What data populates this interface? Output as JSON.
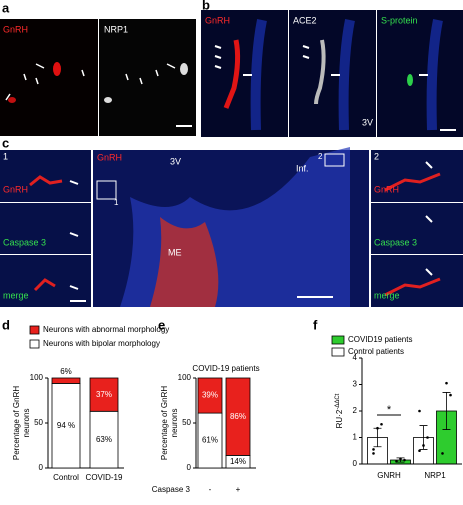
{
  "panels": {
    "a": {
      "letter": "a",
      "labels": [
        "GnRH",
        "NRP1"
      ]
    },
    "b": {
      "letter": "b",
      "labels": [
        "GnRH",
        "ACE2",
        "S-protein"
      ],
      "region": "3V"
    },
    "c": {
      "letter": "c",
      "left": {
        "inset": "1",
        "labels": [
          "GnRH",
          "Caspase 3",
          "merge"
        ]
      },
      "center": {
        "labels": [
          "GnRH",
          "3V",
          "Inf.",
          "ME"
        ],
        "box_labels": [
          "1",
          "2"
        ]
      },
      "right": {
        "inset": "2",
        "labels": [
          "GnRH",
          "Caspase 3",
          "merge"
        ]
      }
    }
  },
  "chart_data": [
    {
      "type": "stacked_bar",
      "letter": "d",
      "ylabel": [
        "Percentage of GnRH",
        "neurons"
      ],
      "categories": [
        "Control",
        "COVID-19"
      ],
      "series": [
        {
          "name": "Neurons with bipolar morphology",
          "color": "#ffffff",
          "values": [
            94,
            63
          ],
          "value_labels": [
            "94 %",
            "63%"
          ]
        },
        {
          "name": "Neurons with abnormal morphology",
          "color": "#e8211d",
          "values": [
            6,
            37
          ],
          "value_labels": [
            "6%",
            "37%"
          ]
        }
      ],
      "ylim": [
        0,
        100
      ],
      "yticks": [
        0,
        50,
        100
      ]
    },
    {
      "type": "stacked_bar",
      "letter": "e",
      "title": "COVID-19 patients",
      "ylabel": [
        "Percentage of GnRH",
        "neurons"
      ],
      "xlabel": "Caspase 3",
      "categories": [
        "-",
        "+"
      ],
      "series": [
        {
          "color": "#ffffff",
          "values": [
            61,
            14
          ],
          "value_labels": [
            "61%",
            "14%"
          ]
        },
        {
          "color": "#e8211d",
          "values": [
            39,
            86
          ],
          "value_labels": [
            "39%",
            "86%"
          ]
        }
      ],
      "ylim": [
        0,
        100
      ],
      "yticks": [
        0,
        50,
        100
      ]
    },
    {
      "type": "bar_errors",
      "letter": "f",
      "ylabel": "RU·2",
      "ylabel_sup": "-ΔΔCt",
      "categories": [
        "GNRH",
        "NRP1"
      ],
      "series": [
        {
          "name": "Control patients",
          "color": "#ffffff",
          "values": [
            1.0,
            1.0
          ],
          "errors": [
            0.35,
            0.45
          ],
          "points": [
            [
              0.55,
              1.35,
              1.5,
              0.4
            ],
            [
              0.5,
              0.7,
              1.0,
              2.0
            ]
          ]
        },
        {
          "name": "COVID19 patients",
          "color": "#2ecc2e",
          "values": [
            0.15,
            2.0
          ],
          "errors": [
            0.08,
            0.7
          ],
          "points": [
            [
              0.1,
              0.2,
              0.15
            ],
            [
              0.4,
              3.05,
              2.6
            ]
          ]
        }
      ],
      "ylim": [
        0,
        4
      ],
      "yticks": [
        0,
        1,
        2,
        3,
        4
      ],
      "annotations": [
        "*"
      ]
    }
  ]
}
